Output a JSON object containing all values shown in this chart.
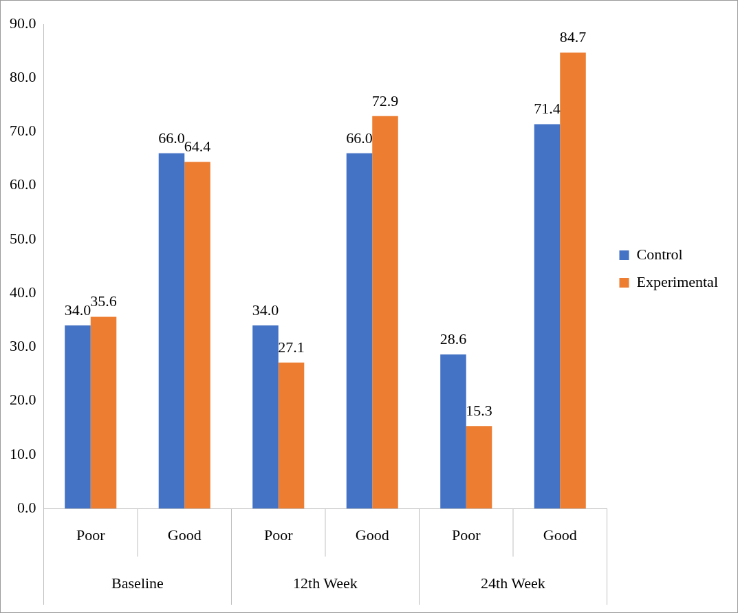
{
  "chart_data": {
    "type": "bar",
    "categories": [
      "Poor",
      "Good",
      "Poor",
      "Good",
      "Poor",
      "Good"
    ],
    "annotations": [
      "Baseline",
      "12th Week",
      "24th Week"
    ],
    "series": [
      {
        "name": "Control",
        "color": "#4472c4",
        "values": [
          34.0,
          66.0,
          34.0,
          66.0,
          28.6,
          71.4
        ],
        "value_labels": [
          "34.0",
          "66.0",
          "34.0",
          "66.0",
          "28.6",
          "71.4"
        ]
      },
      {
        "name": "Experimental",
        "color": "#ed7d31",
        "values": [
          35.6,
          64.4,
          27.1,
          72.9,
          15.3,
          84.7
        ],
        "value_labels": [
          "35.6",
          "64.4",
          "27.1",
          "72.9",
          "15.3",
          "84.7"
        ]
      }
    ],
    "ylim": [
      0,
      90
    ],
    "yticks": [
      {
        "value": 0,
        "label": "0.0"
      },
      {
        "value": 10,
        "label": "10.0"
      },
      {
        "value": 20,
        "label": "20.0"
      },
      {
        "value": 30,
        "label": "30.0"
      },
      {
        "value": 40,
        "label": "40.0"
      },
      {
        "value": 50,
        "label": "50.0"
      },
      {
        "value": 60,
        "label": "60.0"
      },
      {
        "value": 70,
        "label": "70.0"
      },
      {
        "value": 80,
        "label": "80.0"
      },
      {
        "value": 90,
        "label": "90.0"
      }
    ],
    "grid": false,
    "legend": "right"
  }
}
